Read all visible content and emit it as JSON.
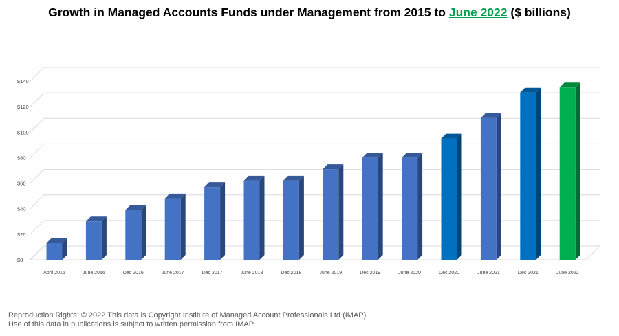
{
  "chart_data": {
    "type": "bar",
    "title_parts": {
      "before": "Growth in Managed Accounts Funds under Management from 2015 to ",
      "highlight": "June 2022",
      "after": " ($ billions)"
    },
    "categories": [
      "April 2015",
      "June 2016",
      "Dec 2016",
      "June 2017",
      "Dec 2017",
      "June 2018",
      "Dec 2018",
      "June 2019",
      "Dec 2019",
      "June 2020",
      "Dec 2020",
      "June 2021",
      "Dec 2021",
      "June 2022"
    ],
    "values": [
      13,
      30,
      39,
      48,
      57,
      62,
      62,
      71,
      80,
      80,
      95,
      111,
      131,
      135
    ],
    "bar_colors": [
      "#4472c4",
      "#4472c4",
      "#4472c4",
      "#4472c4",
      "#4472c4",
      "#4472c4",
      "#4472c4",
      "#4472c4",
      "#4472c4",
      "#4472c4",
      "#0070c0",
      "#4472c4",
      "#0070c0",
      "#00b050"
    ],
    "y_ticks": [
      0,
      20,
      40,
      60,
      80,
      100,
      120,
      140
    ],
    "y_tick_labels": [
      "$0",
      "$20",
      "$40",
      "$60",
      "$80",
      "$100",
      "$120",
      "$140"
    ],
    "ylim": [
      0,
      140
    ],
    "grid": true,
    "style": "3d-column",
    "highlight_color": "#00a050"
  },
  "footer": {
    "line1": "Reproduction Rights: © 2022 This data is Copyright Institute of Managed Account Professionals Ltd (IMAP).",
    "line2": "Use of this data in publications is subject to written permission from IMAP"
  }
}
